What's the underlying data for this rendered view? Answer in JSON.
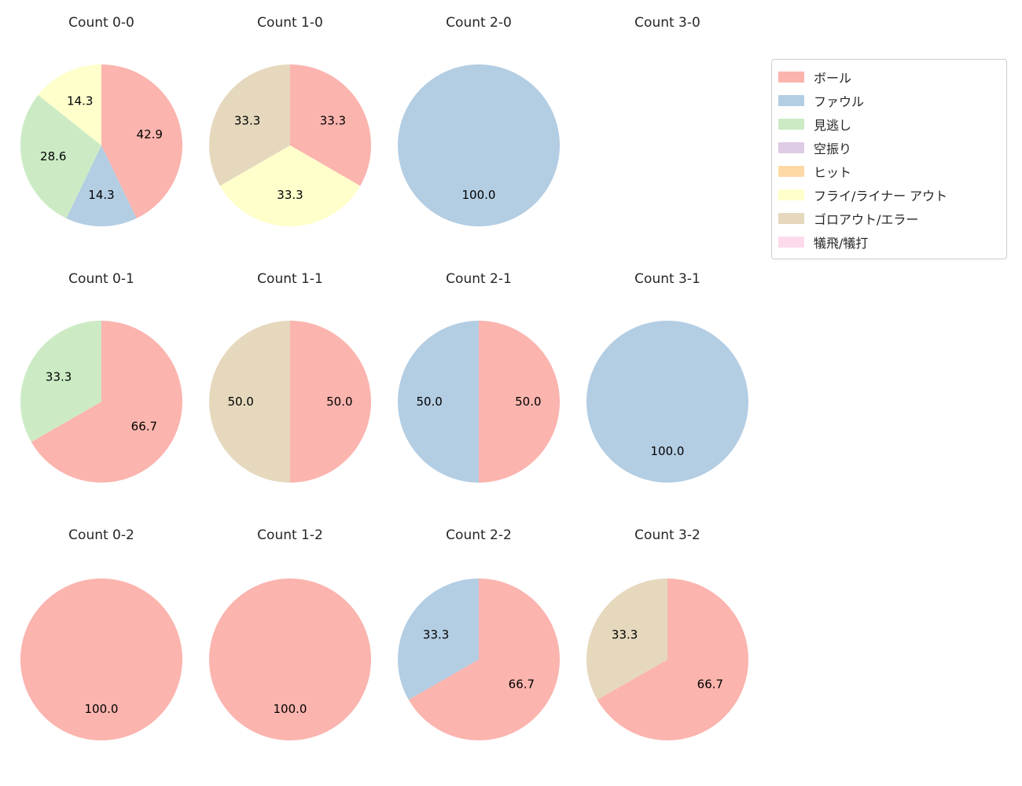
{
  "figure": {
    "background": "#ffffff"
  },
  "chart_data": {
    "type": "pie",
    "grid": {
      "rows": 3,
      "cols": 4
    },
    "palette": {
      "ボール": "#fbb4ae",
      "ファウル": "#b3cde3",
      "見逃し": "#ccebc5",
      "空振り": "#decbe4",
      "ヒット": "#fed9a6",
      "フライ/ライナー アウト": "#ffffcc",
      "ゴロアウト/エラー": "#e5d8bd",
      "犠飛/犠打": "#fddaec"
    },
    "legend": {
      "position": "upper right",
      "entries": [
        "ボール",
        "ファウル",
        "見逃し",
        "空振り",
        "ヒット",
        "フライ/ライナー アウト",
        "ゴロアウト/エラー",
        "犠飛/犠打"
      ]
    },
    "charts": [
      {
        "title": "Count 0-0",
        "slices": [
          {
            "label": "ボール",
            "value": 42.9,
            "pct_text": "42.9"
          },
          {
            "label": "ファウル",
            "value": 14.3,
            "pct_text": "14.3"
          },
          {
            "label": "見逃し",
            "value": 28.6,
            "pct_text": "28.6"
          },
          {
            "label": "フライ/ライナー アウト",
            "value": 14.3,
            "pct_text": "14.3"
          }
        ]
      },
      {
        "title": "Count 1-0",
        "slices": [
          {
            "label": "ボール",
            "value": 33.3,
            "pct_text": "33.3"
          },
          {
            "label": "フライ/ライナー アウト",
            "value": 33.3,
            "pct_text": "33.3"
          },
          {
            "label": "ゴロアウト/エラー",
            "value": 33.3,
            "pct_text": "33.3"
          }
        ]
      },
      {
        "title": "Count 2-0",
        "slices": [
          {
            "label": "ファウル",
            "value": 100.0,
            "pct_text": "100.0"
          }
        ]
      },
      {
        "title": "Count 3-0",
        "slices": []
      },
      {
        "title": "Count 0-1",
        "slices": [
          {
            "label": "ボール",
            "value": 66.7,
            "pct_text": "66.7"
          },
          {
            "label": "見逃し",
            "value": 33.3,
            "pct_text": "33.3"
          }
        ]
      },
      {
        "title": "Count 1-1",
        "slices": [
          {
            "label": "ボール",
            "value": 50.0,
            "pct_text": "50.0"
          },
          {
            "label": "ゴロアウト/エラー",
            "value": 50.0,
            "pct_text": "50.0"
          }
        ]
      },
      {
        "title": "Count 2-1",
        "slices": [
          {
            "label": "ボール",
            "value": 50.0,
            "pct_text": "50.0"
          },
          {
            "label": "ファウル",
            "value": 50.0,
            "pct_text": "50.0"
          }
        ]
      },
      {
        "title": "Count 3-1",
        "slices": [
          {
            "label": "ファウル",
            "value": 100.0,
            "pct_text": "100.0"
          }
        ]
      },
      {
        "title": "Count 0-2",
        "slices": [
          {
            "label": "ボール",
            "value": 100.0,
            "pct_text": "100.0"
          }
        ]
      },
      {
        "title": "Count 1-2",
        "slices": [
          {
            "label": "ボール",
            "value": 100.0,
            "pct_text": "100.0"
          }
        ]
      },
      {
        "title": "Count 2-2",
        "slices": [
          {
            "label": "ボール",
            "value": 66.7,
            "pct_text": "66.7"
          },
          {
            "label": "ファウル",
            "value": 33.3,
            "pct_text": "33.3"
          }
        ]
      },
      {
        "title": "Count 3-2",
        "slices": [
          {
            "label": "ボール",
            "value": 66.7,
            "pct_text": "66.7"
          },
          {
            "label": "ゴロアウト/エラー",
            "value": 33.3,
            "pct_text": "33.3"
          }
        ]
      }
    ]
  }
}
